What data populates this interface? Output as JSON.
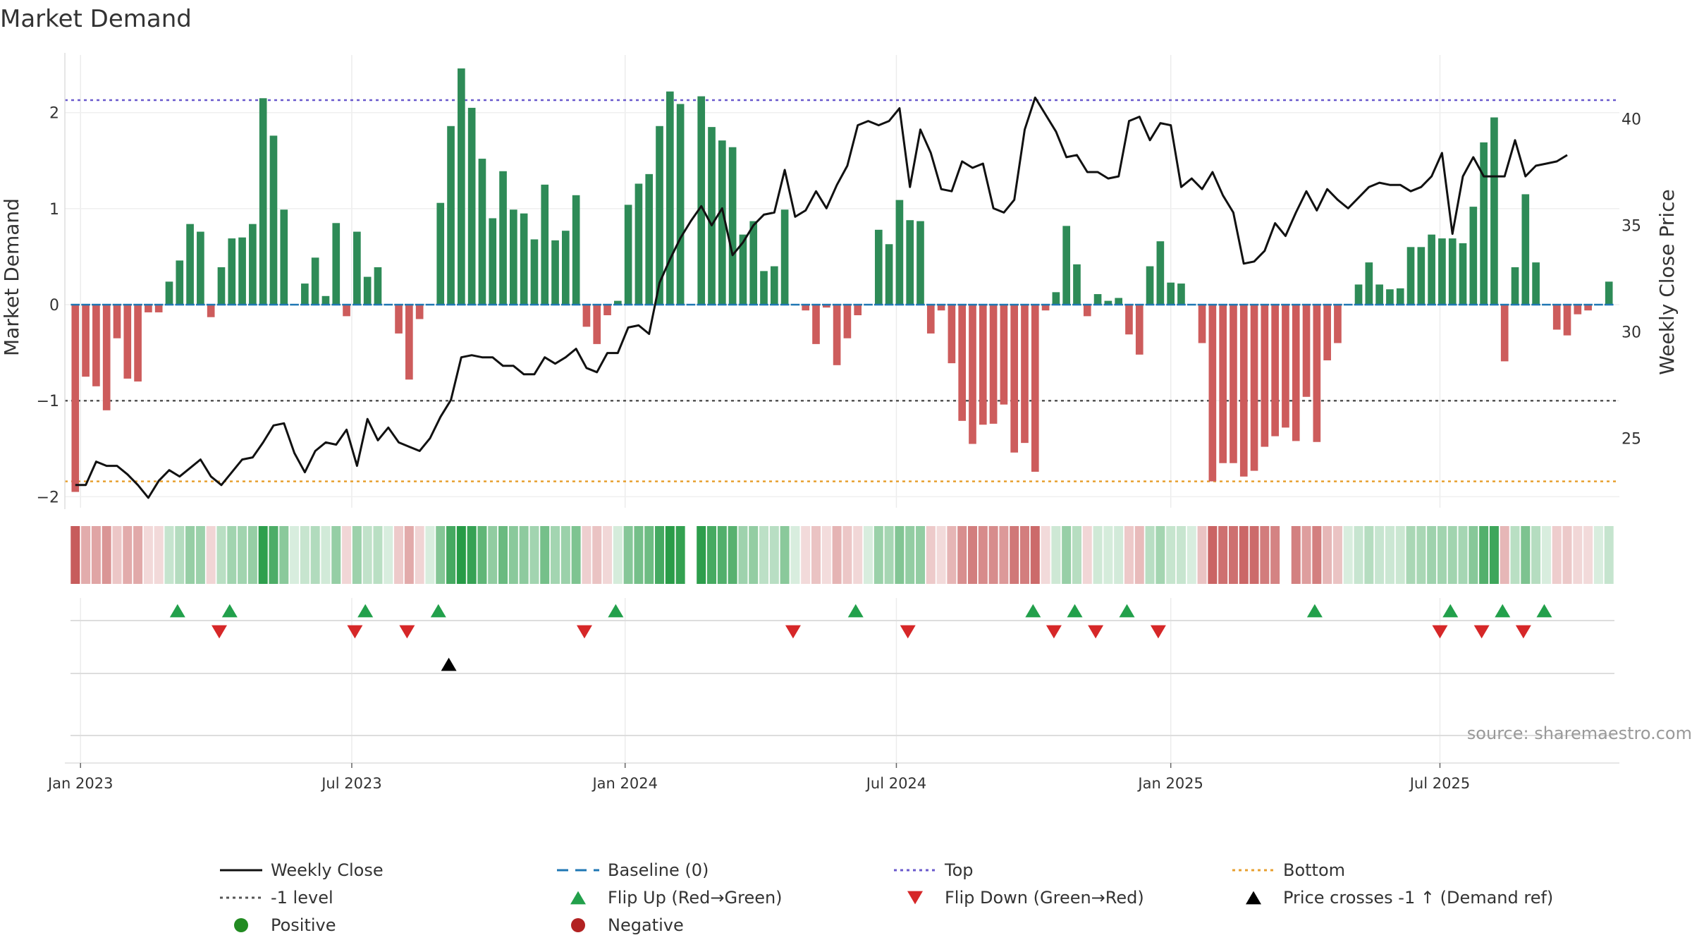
{
  "chart_data": {
    "type": "bar",
    "title": "Market Demand",
    "ylabel_left": "Market Demand",
    "ylabel_right": "Weekly Close Price",
    "ylim_left": [
      -2.1,
      2.6
    ],
    "ylim_right": [
      21.8,
      43
    ],
    "yticks_left": [
      -2,
      -1,
      0,
      1,
      2
    ],
    "ytick_labels_left": [
      "−2",
      "−1",
      "0",
      "1",
      "2"
    ],
    "yticks_right": [
      25,
      30,
      35,
      40
    ],
    "ytick_labels_right": [
      "25",
      "30",
      "35",
      "40"
    ],
    "x_ticks": [
      {
        "label": "Jan 2023",
        "week": 0.5
      },
      {
        "label": "Jul 2023",
        "week": 26.5
      },
      {
        "label": "Jan 2024",
        "week": 52.7
      },
      {
        "label": "Jul 2024",
        "week": 78.7
      },
      {
        "label": "Jan 2025",
        "week": 105
      },
      {
        "label": "Jul 2025",
        "week": 130.8
      }
    ],
    "levels": {
      "top": 2.13,
      "bottom": -1.84,
      "minus_one": -1.0,
      "baseline": 0
    },
    "demand": [
      -1.95,
      -0.75,
      -0.85,
      -1.1,
      -0.35,
      -0.77,
      -0.8,
      -0.08,
      -0.08,
      0.24,
      0.46,
      0.84,
      0.76,
      -0.13,
      0.39,
      0.69,
      0.7,
      0.84,
      2.15,
      1.76,
      0.99,
      0.0,
      0.22,
      0.49,
      0.09,
      0.85,
      -0.12,
      0.76,
      0.29,
      0.39,
      0.0,
      -0.3,
      -0.78,
      -0.15,
      0.0,
      1.06,
      1.86,
      2.46,
      2.05,
      1.52,
      0.9,
      1.39,
      0.99,
      0.95,
      0.68,
      1.25,
      0.67,
      0.77,
      1.14,
      -0.23,
      -0.41,
      -0.11,
      0.04,
      1.04,
      1.26,
      1.36,
      1.86,
      2.22,
      2.09,
      0.0,
      2.17,
      1.85,
      1.71,
      1.64,
      0.73,
      0.87,
      0.35,
      0.4,
      0.99,
      0.0,
      -0.06,
      -0.41,
      -0.03,
      -0.63,
      -0.35,
      -0.11,
      0.0,
      0.78,
      0.63,
      1.09,
      0.88,
      0.87,
      -0.3,
      -0.06,
      -0.61,
      -1.21,
      -1.45,
      -1.25,
      -1.24,
      -1.04,
      -1.54,
      -1.44,
      -1.74,
      -0.06,
      0.13,
      0.82,
      0.42,
      -0.12,
      0.11,
      0.04,
      0.07,
      -0.31,
      -0.52,
      0.4,
      0.66,
      0.23,
      0.22,
      0.0,
      -0.4,
      -1.84,
      -1.65,
      -1.65,
      -1.79,
      -1.73,
      -1.48,
      -1.37,
      -1.28,
      -1.42,
      -0.96,
      -1.43,
      -0.58,
      -0.4,
      0.0,
      0.21,
      0.44,
      0.21,
      0.16,
      0.17,
      0.6,
      0.6,
      0.73,
      0.69,
      0.69,
      0.64,
      1.02,
      1.69,
      1.95,
      -0.59,
      0.39,
      1.15,
      0.44,
      0.0,
      -0.26,
      -0.32,
      -0.1,
      -0.06,
      0.0,
      0.24
    ],
    "price_series": {
      "name": "Weekly Close",
      "values": [
        22.8,
        22.8,
        23.9,
        23.7,
        23.7,
        23.3,
        22.8,
        22.2,
        23.0,
        23.5,
        23.2,
        23.6,
        24.0,
        23.2,
        22.8,
        23.4,
        24.0,
        24.1,
        24.8,
        25.6,
        25.7,
        24.3,
        23.4,
        24.4,
        24.8,
        24.7,
        25.4,
        23.7,
        25.9,
        24.9,
        25.5,
        24.8,
        24.6,
        24.4,
        25.0,
        26.0,
        26.8,
        28.8,
        28.9,
        28.8,
        28.8,
        28.4,
        28.4,
        28.0,
        28.0,
        28.8,
        28.5,
        28.8,
        29.2,
        28.3,
        28.1,
        29.0,
        29.0,
        30.2,
        30.3,
        29.9,
        32.3,
        33.4,
        34.4,
        35.2,
        35.9,
        35.0,
        35.8,
        33.6,
        34.2,
        35.0,
        35.5,
        35.6,
        37.6,
        35.4,
        35.7,
        36.6,
        35.8,
        36.9,
        37.8,
        39.7,
        39.9,
        39.7,
        39.9,
        40.5,
        36.8,
        39.5,
        38.4,
        36.7,
        36.6,
        38.0,
        37.7,
        37.9,
        35.8,
        35.6,
        36.2,
        39.5,
        41.0,
        40.2,
        39.4,
        38.2,
        38.3,
        37.5,
        37.5,
        37.2,
        37.3,
        39.9,
        40.1,
        39.0,
        39.8,
        39.7,
        36.8,
        37.2,
        36.7,
        37.5,
        36.4,
        35.6,
        33.2,
        33.3,
        33.8,
        35.1,
        34.5,
        35.6,
        36.6,
        35.7,
        36.7,
        36.2,
        35.8,
        36.3,
        36.8,
        37.0,
        36.9,
        36.9,
        36.6,
        36.8,
        37.3,
        38.4,
        34.6,
        37.3,
        38.2,
        37.3,
        37.3,
        37.3,
        39.0,
        37.3,
        37.8,
        37.9,
        38.0,
        38.3
      ],
      "color": "#111111"
    },
    "heat_gaps": [
      59,
      116
    ],
    "flip_up_weeks": [
      9.8,
      14.8,
      27.8,
      34.8,
      51.8,
      74.8,
      91.8,
      95.8,
      100.8,
      118.8,
      131.8,
      136.8,
      140.8
    ],
    "flip_down_weeks": [
      13.8,
      26.8,
      31.8,
      48.8,
      68.8,
      79.8,
      93.8,
      97.8,
      103.8,
      130.8,
      134.8,
      138.8
    ],
    "price_cross_weeks": [
      35.8
    ],
    "legend": [
      {
        "label": "Weekly Close",
        "marker": "line-solid",
        "color": "#111111"
      },
      {
        "label": "Baseline (0)",
        "marker": "line-dash",
        "color": "#1f77b4"
      },
      {
        "label": "Top",
        "marker": "line-dot",
        "color": "#6a5acd"
      },
      {
        "label": "Bottom",
        "marker": "line-dot",
        "color": "#e8a030"
      },
      {
        "label": "-1 level",
        "marker": "line-dot",
        "color": "#555555"
      },
      {
        "label": "Flip Up (Red→Green)",
        "marker": "triangle-up",
        "color": "#22a04b"
      },
      {
        "label": "Flip Down (Green→Red)",
        "marker": "triangle-down",
        "color": "#d62728"
      },
      {
        "label": "Price crosses -1 ↑ (Demand ref)",
        "marker": "triangle-up",
        "color": "#000000"
      },
      {
        "label": "Positive",
        "marker": "circle",
        "color": "#228b22"
      },
      {
        "label": "Negative",
        "marker": "circle",
        "color": "#b22222"
      }
    ],
    "source": "source: sharemaestro.com"
  },
  "colors": {
    "positive_bar": "#2e8b57",
    "negative_bar": "#cd5c5c",
    "baseline": "#1f77b4",
    "top": "#6a5acd",
    "bottom": "#e8a030",
    "minus_one": "#555555"
  }
}
